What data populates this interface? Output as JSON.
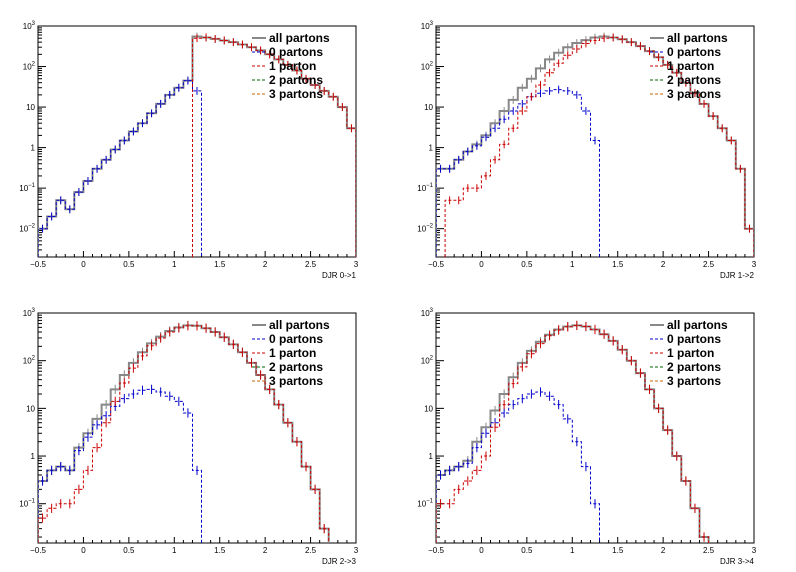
{
  "colors": {
    "all_partons": "#888888",
    "0_partons": "#0000cc",
    "1_parton": "#cc0000",
    "2_partons": "#006600",
    "3_partons": "#cc6600"
  },
  "chart_data": [
    {
      "type": "line",
      "subtype": "histogram-step",
      "xlabel": "DJR 0->1",
      "ylabel": "",
      "title": "",
      "xlim": [
        -0.5,
        3
      ],
      "ylim": [
        0.002,
        1000
      ],
      "yscale": "log",
      "grid": false,
      "legend_position": "top-right",
      "x_ticks": [
        "−0.5",
        "0",
        "0.5",
        "1",
        "1.5",
        "2",
        "2.5",
        "3"
      ],
      "y_ticks": [
        {
          "base": "10",
          "exp": "3"
        },
        {
          "base": "10",
          "exp": "2"
        },
        {
          "base": "10",
          "exp": ""
        },
        {
          "base": "1",
          "exp": ""
        },
        {
          "base": "10",
          "exp": "−1"
        },
        {
          "base": "10",
          "exp": "−2"
        }
      ],
      "series": [
        {
          "name": "all partons",
          "color_key": "all_partons",
          "style": "solid",
          "x": [
            -0.45,
            -0.35,
            -0.25,
            -0.15,
            -0.05,
            0.05,
            0.15,
            0.25,
            0.35,
            0.45,
            0.55,
            0.65,
            0.75,
            0.85,
            0.95,
            1.05,
            1.15,
            1.25,
            1.35,
            1.45,
            1.55,
            1.65,
            1.75,
            1.85,
            1.95,
            2.05,
            2.15,
            2.25,
            2.35,
            2.45,
            2.55,
            2.65,
            2.75,
            2.85,
            2.95
          ],
          "y": [
            0.01,
            0.02,
            0.05,
            0.03,
            0.08,
            0.15,
            0.3,
            0.5,
            0.9,
            1.5,
            2.5,
            4,
            7,
            12,
            20,
            30,
            45,
            550,
            520,
            480,
            440,
            400,
            350,
            300,
            250,
            200,
            150,
            110,
            80,
            50,
            35,
            25,
            18,
            10,
            3
          ]
        },
        {
          "name": "0 partons",
          "color_key": "0_partons",
          "style": "dashed",
          "x": [
            -0.45,
            -0.35,
            -0.25,
            -0.15,
            -0.05,
            0.05,
            0.15,
            0.25,
            0.35,
            0.45,
            0.55,
            0.65,
            0.75,
            0.85,
            0.95,
            1.05,
            1.15,
            1.25
          ],
          "y": [
            0.01,
            0.02,
            0.05,
            0.03,
            0.08,
            0.15,
            0.3,
            0.5,
            0.9,
            1.5,
            2.5,
            4,
            7,
            12,
            20,
            30,
            45,
            25
          ]
        },
        {
          "name": "1 parton",
          "color_key": "1_parton",
          "style": "dashed",
          "x": [
            1.25,
            1.35,
            1.45,
            1.55,
            1.65,
            1.75,
            1.85,
            1.95,
            2.05,
            2.15,
            2.25,
            2.35,
            2.45,
            2.55,
            2.65,
            2.75,
            2.85,
            2.95
          ],
          "y": [
            500,
            520,
            480,
            440,
            400,
            350,
            300,
            250,
            200,
            150,
            110,
            80,
            50,
            35,
            25,
            18,
            10,
            3
          ]
        },
        {
          "name": "2 partons",
          "color_key": "2_partons",
          "style": "dashed",
          "x": [],
          "y": []
        },
        {
          "name": "3 partons",
          "color_key": "3_partons",
          "style": "dashed",
          "x": [],
          "y": []
        }
      ]
    },
    {
      "type": "line",
      "subtype": "histogram-step",
      "xlabel": "DJR 1->2",
      "ylabel": "",
      "title": "",
      "xlim": [
        -0.5,
        3
      ],
      "ylim": [
        0.002,
        1000
      ],
      "yscale": "log",
      "grid": false,
      "legend_position": "top-right",
      "x_ticks": [
        "−0.5",
        "0",
        "0.5",
        "1",
        "1.5",
        "2",
        "2.5",
        "3"
      ],
      "y_ticks": [
        {
          "base": "10",
          "exp": "3"
        },
        {
          "base": "10",
          "exp": "2"
        },
        {
          "base": "10",
          "exp": ""
        },
        {
          "base": "1",
          "exp": ""
        },
        {
          "base": "10",
          "exp": "−1"
        },
        {
          "base": "10",
          "exp": "−2"
        }
      ],
      "series": [
        {
          "name": "all partons",
          "color_key": "all_partons",
          "style": "solid",
          "x": [
            -0.45,
            -0.35,
            -0.25,
            -0.15,
            -0.05,
            0.05,
            0.15,
            0.25,
            0.35,
            0.45,
            0.55,
            0.65,
            0.75,
            0.85,
            0.95,
            1.05,
            1.15,
            1.25,
            1.35,
            1.45,
            1.55,
            1.65,
            1.75,
            1.85,
            1.95,
            2.05,
            2.15,
            2.25,
            2.35,
            2.45,
            2.55,
            2.65,
            2.75,
            2.85,
            2.95
          ],
          "y": [
            0.3,
            0.3,
            0.5,
            0.8,
            1.2,
            2,
            4,
            8,
            15,
            30,
            50,
            90,
            150,
            220,
            300,
            380,
            450,
            520,
            550,
            520,
            470,
            400,
            320,
            240,
            170,
            110,
            70,
            40,
            22,
            12,
            6,
            3,
            1.5,
            0.3,
            0.01
          ]
        },
        {
          "name": "0 partons",
          "color_key": "0_partons",
          "style": "dashed",
          "x": [
            -0.45,
            -0.35,
            -0.25,
            -0.15,
            -0.05,
            0.05,
            0.15,
            0.25,
            0.35,
            0.45,
            0.55,
            0.65,
            0.75,
            0.85,
            0.95,
            1.05,
            1.15,
            1.25
          ],
          "y": [
            0.3,
            0.3,
            0.5,
            0.8,
            1.1,
            1.8,
            3,
            5,
            8,
            12,
            18,
            22,
            25,
            27,
            25,
            20,
            8,
            1.5
          ]
        },
        {
          "name": "1 parton",
          "color_key": "1_parton",
          "style": "dashed",
          "x": [
            -0.35,
            -0.25,
            -0.15,
            -0.05,
            0.05,
            0.15,
            0.25,
            0.35,
            0.45,
            0.55,
            0.65,
            0.75,
            0.85,
            0.95,
            1.05,
            1.15,
            1.25,
            1.35,
            1.45,
            1.55,
            1.65,
            1.75,
            1.85,
            1.95,
            2.05,
            2.15,
            2.25,
            2.35,
            2.45,
            2.55,
            2.65,
            2.75,
            2.85,
            2.95
          ],
          "y": [
            0.05,
            0.05,
            0.1,
            0.1,
            0.2,
            0.5,
            1.2,
            3,
            8,
            18,
            35,
            70,
            120,
            190,
            270,
            370,
            440,
            500,
            520,
            470,
            400,
            320,
            240,
            170,
            110,
            70,
            40,
            22,
            12,
            6,
            3,
            1.5,
            0.3,
            0.01
          ]
        },
        {
          "name": "2 partons",
          "color_key": "2_partons",
          "style": "dashed",
          "x": [],
          "y": []
        },
        {
          "name": "3 partons",
          "color_key": "3_partons",
          "style": "dashed",
          "x": [],
          "y": []
        }
      ]
    },
    {
      "type": "line",
      "subtype": "histogram-step",
      "xlabel": "DJR 2->3",
      "ylabel": "",
      "title": "",
      "xlim": [
        -0.5,
        3
      ],
      "ylim": [
        0.015,
        1000
      ],
      "yscale": "log",
      "grid": false,
      "legend_position": "top-right",
      "x_ticks": [
        "−0.5",
        "0",
        "0.5",
        "1",
        "1.5",
        "2",
        "2.5",
        "3"
      ],
      "y_ticks": [
        {
          "base": "10",
          "exp": "3"
        },
        {
          "base": "10",
          "exp": "2"
        },
        {
          "base": "10",
          "exp": ""
        },
        {
          "base": "1",
          "exp": ""
        },
        {
          "base": "10",
          "exp": "−1"
        }
      ],
      "series": [
        {
          "name": "all partons",
          "color_key": "all_partons",
          "style": "solid",
          "x": [
            -0.45,
            -0.35,
            -0.25,
            -0.15,
            -0.05,
            0.05,
            0.15,
            0.25,
            0.35,
            0.45,
            0.55,
            0.65,
            0.75,
            0.85,
            0.95,
            1.05,
            1.15,
            1.25,
            1.35,
            1.45,
            1.55,
            1.65,
            1.75,
            1.85,
            1.95,
            2.05,
            2.15,
            2.25,
            2.35,
            2.45,
            2.55,
            2.65
          ],
          "y": [
            0.3,
            0.5,
            0.6,
            0.5,
            1.5,
            3,
            6,
            12,
            25,
            50,
            90,
            150,
            230,
            320,
            420,
            500,
            550,
            540,
            480,
            400,
            310,
            220,
            150,
            90,
            50,
            25,
            12,
            5,
            2,
            0.6,
            0.2,
            0.03
          ]
        },
        {
          "name": "0 partons",
          "color_key": "0_partons",
          "style": "dashed",
          "x": [
            -0.45,
            -0.35,
            -0.25,
            -0.15,
            -0.05,
            0.05,
            0.15,
            0.25,
            0.35,
            0.45,
            0.55,
            0.65,
            0.75,
            0.85,
            0.95,
            1.05,
            1.15,
            1.25
          ],
          "y": [
            0.3,
            0.5,
            0.6,
            0.5,
            1.3,
            2.5,
            4.5,
            7,
            11,
            16,
            20,
            24,
            25,
            22,
            18,
            14,
            8,
            0.5
          ]
        },
        {
          "name": "1 parton",
          "color_key": "1_parton",
          "style": "dashed",
          "x": [
            -0.45,
            -0.35,
            -0.25,
            -0.15,
            -0.05,
            0.05,
            0.15,
            0.25,
            0.35,
            0.45,
            0.55,
            0.65,
            0.75,
            0.85,
            0.95,
            1.05,
            1.15,
            1.25,
            1.35,
            1.45,
            1.55,
            1.65,
            1.75,
            1.85,
            1.95,
            2.05,
            2.15,
            2.25,
            2.35,
            2.45,
            2.55,
            2.65
          ],
          "y": [
            0.05,
            0.08,
            0.1,
            0.1,
            0.2,
            0.5,
            1.5,
            5,
            14,
            34,
            70,
            126,
            205,
            298,
            400,
            486,
            540,
            540,
            480,
            400,
            310,
            220,
            150,
            90,
            50,
            25,
            12,
            5,
            2,
            0.6,
            0.2,
            0.03
          ]
        },
        {
          "name": "2 partons",
          "color_key": "2_partons",
          "style": "dashed",
          "x": [],
          "y": []
        },
        {
          "name": "3 partons",
          "color_key": "3_partons",
          "style": "dashed",
          "x": [],
          "y": []
        }
      ]
    },
    {
      "type": "line",
      "subtype": "histogram-step",
      "xlabel": "DJR 3->4",
      "ylabel": "",
      "title": "",
      "xlim": [
        -0.5,
        3
      ],
      "ylim": [
        0.015,
        1000
      ],
      "yscale": "log",
      "grid": false,
      "legend_position": "top-right",
      "x_ticks": [
        "−0.5",
        "0",
        "0.5",
        "1",
        "1.5",
        "2",
        "2.5",
        "3"
      ],
      "y_ticks": [
        {
          "base": "10",
          "exp": "3"
        },
        {
          "base": "10",
          "exp": "2"
        },
        {
          "base": "10",
          "exp": ""
        },
        {
          "base": "1",
          "exp": ""
        },
        {
          "base": "10",
          "exp": "−1"
        }
      ],
      "series": [
        {
          "name": "all partons",
          "color_key": "all_partons",
          "style": "solid",
          "x": [
            -0.45,
            -0.35,
            -0.25,
            -0.15,
            -0.05,
            0.05,
            0.15,
            0.25,
            0.35,
            0.45,
            0.55,
            0.65,
            0.75,
            0.85,
            0.95,
            1.05,
            1.15,
            1.25,
            1.35,
            1.45,
            1.55,
            1.65,
            1.75,
            1.85,
            1.95,
            2.05,
            2.15,
            2.25,
            2.35,
            2.45
          ],
          "y": [
            0.4,
            0.5,
            0.6,
            0.8,
            2,
            4,
            9,
            20,
            45,
            90,
            160,
            250,
            350,
            450,
            520,
            550,
            520,
            450,
            360,
            260,
            170,
            100,
            55,
            25,
            10,
            3.5,
            1,
            0.3,
            0.08,
            0.02
          ]
        },
        {
          "name": "0 partons",
          "color_key": "0_partons",
          "style": "dashed",
          "x": [
            -0.45,
            -0.35,
            -0.25,
            -0.15,
            -0.05,
            0.05,
            0.15,
            0.25,
            0.35,
            0.45,
            0.55,
            0.65,
            0.75,
            0.85,
            0.95,
            1.05,
            1.15,
            1.25
          ],
          "y": [
            0.4,
            0.5,
            0.6,
            0.7,
            1.5,
            3,
            5,
            8,
            12,
            16,
            20,
            22,
            18,
            12,
            6,
            2,
            0.6,
            0.1
          ]
        },
        {
          "name": "1 parton",
          "color_key": "1_parton",
          "style": "dashed",
          "x": [
            -0.45,
            -0.35,
            -0.25,
            -0.15,
            -0.05,
            0.05,
            0.15,
            0.25,
            0.35,
            0.45,
            0.55,
            0.65,
            0.75,
            0.85,
            0.95,
            1.05,
            1.15,
            1.25,
            1.35,
            1.45,
            1.55,
            1.65,
            1.75,
            1.85,
            1.95,
            2.05,
            2.15,
            2.25,
            2.35,
            2.45
          ],
          "y": [
            0.1,
            0.1,
            0.2,
            0.3,
            0.5,
            1,
            4,
            12,
            33,
            74,
            140,
            228,
            332,
            438,
            514,
            548,
            520,
            450,
            360,
            260,
            170,
            100,
            55,
            25,
            10,
            3.5,
            1,
            0.3,
            0.08,
            0.02
          ]
        },
        {
          "name": "2 partons",
          "color_key": "2_partons",
          "style": "dashed",
          "x": [],
          "y": []
        },
        {
          "name": "3 partons",
          "color_key": "3_partons",
          "style": "dashed",
          "x": [],
          "y": []
        }
      ]
    }
  ]
}
